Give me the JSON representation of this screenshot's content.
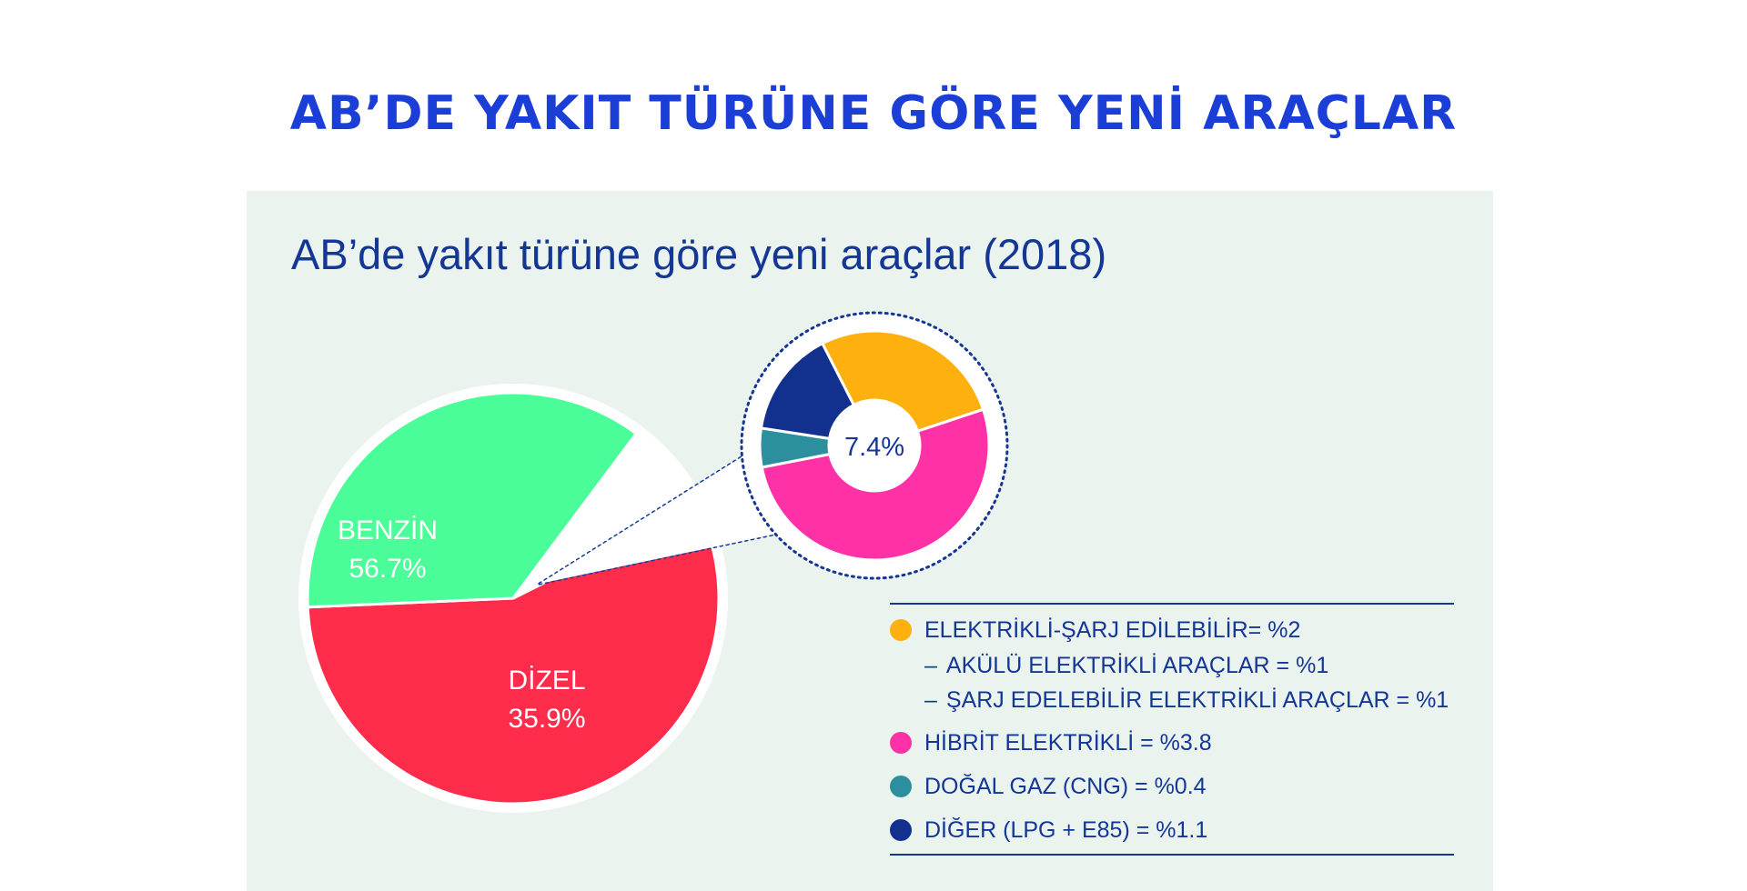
{
  "title": "AB’DE YAKIT TÜRÜNE GÖRE YENİ ARAÇLAR",
  "chart_data": [
    {
      "type": "pie",
      "title": "AB’de yakıt türüne göre yeni araçlar (2018)",
      "series": [
        {
          "label": "BENZİN",
          "value": 56.7,
          "value_label": "56.7%",
          "color": "#fe2c4b"
        },
        {
          "label": "DİZEL",
          "value": 35.9,
          "value_label": "35.9%",
          "color": "#4bfd99"
        },
        {
          "label": "",
          "value": 7.4,
          "color": "#ffffff",
          "exploded": true
        }
      ]
    },
    {
      "type": "pie",
      "subtype": "donut",
      "center_label": "7.4%",
      "series": [
        {
          "label": "ELEKTRİKLİ-ŞARJ EDİLEBİLİR",
          "value": 2.0,
          "color": "#fdb00e"
        },
        {
          "label": "HİBRİT ELEKTRİKLİ",
          "value": 3.8,
          "color": "#fe31a6"
        },
        {
          "label": "DOĞAL GAZ (CNG)",
          "value": 0.4,
          "color": "#2c8f9d"
        },
        {
          "label": "DİĞER (LPG + E85)",
          "value": 1.1,
          "color": "#12318f"
        }
      ]
    }
  ],
  "legend": {
    "items": [
      {
        "text": "ELEKTRİKLİ-ŞARJ EDİLEBİLİR= %2",
        "color": "#fdb00e"
      },
      {
        "text": "AKÜLÜ ELEKTRİKLİ ARAÇLAR = %1",
        "sub": true
      },
      {
        "text": "ŞARJ EDELEBİLİR ELEKTRİKLİ ARAÇLAR = %1",
        "sub": true
      },
      {
        "text": "HİBRİT ELEKTRİKLİ = %3.8",
        "color": "#fe31a6"
      },
      {
        "text": "DOĞAL GAZ (CNG) = %0.4",
        "color": "#2c8f9d"
      },
      {
        "text": "DİĞER (LPG + E85) = %1.1",
        "color": "#12318f"
      }
    ]
  }
}
